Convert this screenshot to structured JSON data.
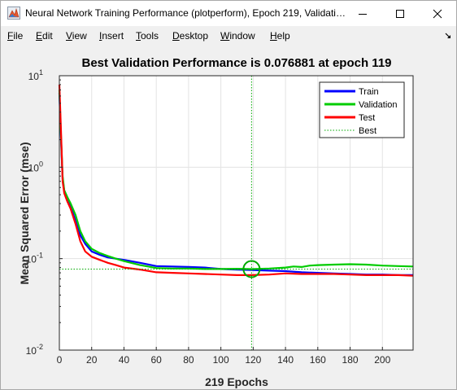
{
  "window": {
    "title": "Neural Network Training Performance (plotperform), Epoch 219, Validati…"
  },
  "menu": {
    "items": [
      {
        "label": "File"
      },
      {
        "label": "Edit"
      },
      {
        "label": "View"
      },
      {
        "label": "Insert"
      },
      {
        "label": "Tools"
      },
      {
        "label": "Desktop"
      },
      {
        "label": "Window"
      },
      {
        "label": "Help"
      }
    ]
  },
  "chart_data": {
    "type": "line",
    "title": "Best Validation Performance is 0.076881 at epoch 119",
    "xlabel": "219 Epochs",
    "ylabel": "Mean Squared Error  (mse)",
    "xlim": [
      0,
      219
    ],
    "ylim": [
      0.01,
      10
    ],
    "yscale": "log",
    "grid": true,
    "legend_position": "top-right",
    "xticks": [
      "0",
      "20",
      "40",
      "60",
      "80",
      "100",
      "120",
      "140",
      "160",
      "180",
      "200"
    ],
    "yticks": [
      {
        "base": "10",
        "exp": "1"
      },
      {
        "base": "10",
        "exp": "0"
      },
      {
        "base": "10",
        "exp": "-1"
      },
      {
        "base": "10",
        "exp": "-2"
      }
    ],
    "best": {
      "epoch": 119,
      "value": 0.076881
    },
    "series": [
      {
        "name": "Train",
        "color": "#0000ff",
        "x": [
          0,
          1,
          2,
          3,
          5,
          7,
          10,
          13,
          16,
          20,
          25,
          30,
          35,
          40,
          50,
          60,
          70,
          80,
          90,
          100,
          110,
          119,
          130,
          140,
          150,
          160,
          170,
          180,
          190,
          200,
          210,
          219
        ],
        "y": [
          6.5,
          2.0,
          0.75,
          0.55,
          0.45,
          0.37,
          0.26,
          0.18,
          0.145,
          0.12,
          0.11,
          0.103,
          0.1,
          0.097,
          0.09,
          0.083,
          0.082,
          0.081,
          0.08,
          0.077,
          0.076,
          0.075,
          0.074,
          0.073,
          0.071,
          0.07,
          0.069,
          0.068,
          0.067,
          0.067,
          0.066,
          0.066
        ]
      },
      {
        "name": "Validation",
        "color": "#00cc00",
        "x": [
          0,
          1,
          2,
          3,
          5,
          7,
          10,
          13,
          16,
          20,
          25,
          30,
          35,
          40,
          50,
          60,
          70,
          80,
          90,
          100,
          110,
          119,
          130,
          140,
          145,
          150,
          155,
          160,
          170,
          180,
          190,
          200,
          210,
          219
        ],
        "y": [
          7.0,
          2.2,
          0.8,
          0.56,
          0.47,
          0.4,
          0.3,
          0.2,
          0.155,
          0.128,
          0.115,
          0.107,
          0.1,
          0.094,
          0.085,
          0.079,
          0.078,
          0.078,
          0.077,
          0.077,
          0.0775,
          0.076881,
          0.078,
          0.08,
          0.082,
          0.081,
          0.084,
          0.085,
          0.086,
          0.087,
          0.086,
          0.084,
          0.083,
          0.082
        ]
      },
      {
        "name": "Test",
        "color": "#ff0000",
        "x": [
          0,
          1,
          2,
          3,
          5,
          7,
          10,
          13,
          16,
          20,
          25,
          30,
          35,
          40,
          50,
          60,
          70,
          80,
          90,
          100,
          110,
          119,
          130,
          140,
          150,
          160,
          170,
          180,
          190,
          200,
          210,
          219
        ],
        "y": [
          8.0,
          2.5,
          0.7,
          0.52,
          0.42,
          0.35,
          0.24,
          0.155,
          0.12,
          0.105,
          0.097,
          0.09,
          0.085,
          0.08,
          0.076,
          0.071,
          0.07,
          0.069,
          0.068,
          0.067,
          0.066,
          0.066,
          0.067,
          0.069,
          0.068,
          0.068,
          0.068,
          0.067,
          0.066,
          0.066,
          0.066,
          0.065
        ]
      }
    ],
    "best_series": {
      "name": "Best",
      "color": "#00aa00"
    }
  }
}
